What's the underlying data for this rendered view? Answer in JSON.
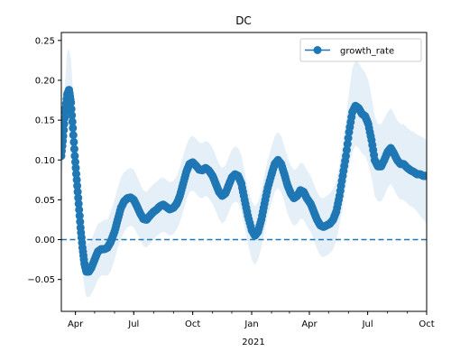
{
  "chart_data": {
    "type": "line",
    "title": "DC",
    "xlabel": "",
    "ylabel": "",
    "x_start": "2020-03-10",
    "x_end": "2021-10-01",
    "ylim": [
      -0.09,
      0.26
    ],
    "yticks": [
      -0.05,
      0.0,
      0.05,
      0.1,
      0.15,
      0.2,
      0.25
    ],
    "ytick_labels": [
      "−0.05",
      "0.00",
      "0.05",
      "0.10",
      "0.15",
      "0.20",
      "0.25"
    ],
    "xticks": [
      {
        "date": "2020-04-01",
        "label": "Apr"
      },
      {
        "date": "2020-07-01",
        "label": "Jul"
      },
      {
        "date": "2020-10-01",
        "label": "Oct"
      },
      {
        "date": "2021-01-01",
        "label": "Jan"
      },
      {
        "date": "2021-04-01",
        "label": "Apr"
      },
      {
        "date": "2021-07-01",
        "label": "Jul"
      },
      {
        "date": "2021-10-01",
        "label": "Oct"
      }
    ],
    "x_year_label": "2021",
    "reference_line": {
      "y": 0.0,
      "style": "dashed"
    },
    "legend": {
      "location": "upper right",
      "entries": [
        "growth_rate"
      ]
    },
    "grid": false,
    "series": [
      {
        "name": "growth_rate",
        "color": "#1f77b4",
        "band_color": "#c6dcf0",
        "points": [
          {
            "x": "2020-03-10",
            "y": 0.105,
            "lo": 0.08,
            "hi": 0.13
          },
          {
            "x": "2020-03-13",
            "y": 0.13,
            "lo": 0.1,
            "hi": 0.16
          },
          {
            "x": "2020-03-16",
            "y": 0.16,
            "lo": 0.13,
            "hi": 0.2
          },
          {
            "x": "2020-03-19",
            "y": 0.182,
            "lo": 0.15,
            "hi": 0.235
          },
          {
            "x": "2020-03-22",
            "y": 0.188,
            "lo": 0.155,
            "hi": 0.24
          },
          {
            "x": "2020-03-25",
            "y": 0.172,
            "lo": 0.14,
            "hi": 0.225
          },
          {
            "x": "2020-03-28",
            "y": 0.14,
            "lo": 0.11,
            "hi": 0.19
          },
          {
            "x": "2020-03-31",
            "y": 0.105,
            "lo": 0.075,
            "hi": 0.15
          },
          {
            "x": "2020-04-03",
            "y": 0.075,
            "lo": 0.045,
            "hi": 0.115
          },
          {
            "x": "2020-04-06",
            "y": 0.045,
            "lo": 0.015,
            "hi": 0.08
          },
          {
            "x": "2020-04-09",
            "y": 0.015,
            "lo": -0.015,
            "hi": 0.05
          },
          {
            "x": "2020-04-12",
            "y": -0.01,
            "lo": -0.04,
            "hi": 0.025
          },
          {
            "x": "2020-04-15",
            "y": -0.03,
            "lo": -0.06,
            "hi": 0.005
          },
          {
            "x": "2020-04-18",
            "y": -0.04,
            "lo": -0.072,
            "hi": -0.005
          },
          {
            "x": "2020-04-22",
            "y": -0.04,
            "lo": -0.072,
            "hi": -0.005
          },
          {
            "x": "2020-04-26",
            "y": -0.035,
            "lo": -0.068,
            "hi": 0.0
          },
          {
            "x": "2020-05-01",
            "y": -0.025,
            "lo": -0.06,
            "hi": 0.01
          },
          {
            "x": "2020-05-06",
            "y": -0.015,
            "lo": -0.05,
            "hi": 0.02
          },
          {
            "x": "2020-05-11",
            "y": -0.012,
            "lo": -0.045,
            "hi": 0.022
          },
          {
            "x": "2020-05-16",
            "y": -0.012,
            "lo": -0.045,
            "hi": 0.025
          },
          {
            "x": "2020-05-21",
            "y": -0.01,
            "lo": -0.045,
            "hi": 0.025
          },
          {
            "x": "2020-05-26",
            "y": -0.003,
            "lo": -0.04,
            "hi": 0.035
          },
          {
            "x": "2020-06-01",
            "y": 0.01,
            "lo": -0.025,
            "hi": 0.05
          },
          {
            "x": "2020-06-06",
            "y": 0.025,
            "lo": -0.01,
            "hi": 0.065
          },
          {
            "x": "2020-06-11",
            "y": 0.04,
            "lo": 0.0,
            "hi": 0.078
          },
          {
            "x": "2020-06-16",
            "y": 0.048,
            "lo": 0.01,
            "hi": 0.085
          },
          {
            "x": "2020-06-21",
            "y": 0.052,
            "lo": 0.015,
            "hi": 0.088
          },
          {
            "x": "2020-06-26",
            "y": 0.053,
            "lo": 0.018,
            "hi": 0.09
          },
          {
            "x": "2020-07-01",
            "y": 0.05,
            "lo": 0.015,
            "hi": 0.088
          },
          {
            "x": "2020-07-06",
            "y": 0.042,
            "lo": 0.008,
            "hi": 0.08
          },
          {
            "x": "2020-07-11",
            "y": 0.033,
            "lo": 0.0,
            "hi": 0.07
          },
          {
            "x": "2020-07-16",
            "y": 0.026,
            "lo": -0.008,
            "hi": 0.062
          },
          {
            "x": "2020-07-21",
            "y": 0.025,
            "lo": -0.01,
            "hi": 0.06
          },
          {
            "x": "2020-07-26",
            "y": 0.03,
            "lo": -0.005,
            "hi": 0.065
          },
          {
            "x": "2020-08-01",
            "y": 0.035,
            "lo": 0.0,
            "hi": 0.07
          },
          {
            "x": "2020-08-06",
            "y": 0.038,
            "lo": 0.005,
            "hi": 0.073
          },
          {
            "x": "2020-08-11",
            "y": 0.042,
            "lo": 0.008,
            "hi": 0.077
          },
          {
            "x": "2020-08-16",
            "y": 0.044,
            "lo": 0.01,
            "hi": 0.078
          },
          {
            "x": "2020-08-21",
            "y": 0.041,
            "lo": 0.008,
            "hi": 0.075
          },
          {
            "x": "2020-08-26",
            "y": 0.038,
            "lo": 0.005,
            "hi": 0.072
          },
          {
            "x": "2020-09-01",
            "y": 0.04,
            "lo": 0.007,
            "hi": 0.074
          },
          {
            "x": "2020-09-06",
            "y": 0.045,
            "lo": 0.012,
            "hi": 0.08
          },
          {
            "x": "2020-09-11",
            "y": 0.055,
            "lo": 0.022,
            "hi": 0.09
          },
          {
            "x": "2020-09-16",
            "y": 0.07,
            "lo": 0.035,
            "hi": 0.105
          },
          {
            "x": "2020-09-21",
            "y": 0.085,
            "lo": 0.05,
            "hi": 0.118
          },
          {
            "x": "2020-09-26",
            "y": 0.095,
            "lo": 0.06,
            "hi": 0.128
          },
          {
            "x": "2020-10-01",
            "y": 0.097,
            "lo": 0.062,
            "hi": 0.13
          },
          {
            "x": "2020-10-06",
            "y": 0.093,
            "lo": 0.058,
            "hi": 0.127
          },
          {
            "x": "2020-10-11",
            "y": 0.088,
            "lo": 0.053,
            "hi": 0.122
          },
          {
            "x": "2020-10-16",
            "y": 0.087,
            "lo": 0.052,
            "hi": 0.121
          },
          {
            "x": "2020-10-21",
            "y": 0.09,
            "lo": 0.055,
            "hi": 0.124
          },
          {
            "x": "2020-10-26",
            "y": 0.087,
            "lo": 0.052,
            "hi": 0.122
          },
          {
            "x": "2020-11-01",
            "y": 0.08,
            "lo": 0.045,
            "hi": 0.115
          },
          {
            "x": "2020-11-06",
            "y": 0.07,
            "lo": 0.036,
            "hi": 0.105
          },
          {
            "x": "2020-11-11",
            "y": 0.06,
            "lo": 0.026,
            "hi": 0.095
          },
          {
            "x": "2020-11-16",
            "y": 0.055,
            "lo": 0.02,
            "hi": 0.09
          },
          {
            "x": "2020-11-21",
            "y": 0.058,
            "lo": 0.024,
            "hi": 0.093
          },
          {
            "x": "2020-11-26",
            "y": 0.068,
            "lo": 0.034,
            "hi": 0.103
          },
          {
            "x": "2020-12-01",
            "y": 0.078,
            "lo": 0.044,
            "hi": 0.113
          },
          {
            "x": "2020-12-06",
            "y": 0.082,
            "lo": 0.048,
            "hi": 0.117
          },
          {
            "x": "2020-12-11",
            "y": 0.08,
            "lo": 0.046,
            "hi": 0.115
          },
          {
            "x": "2020-12-16",
            "y": 0.07,
            "lo": 0.035,
            "hi": 0.105
          },
          {
            "x": "2020-12-21",
            "y": 0.05,
            "lo": 0.015,
            "hi": 0.085
          },
          {
            "x": "2020-12-26",
            "y": 0.03,
            "lo": -0.005,
            "hi": 0.065
          },
          {
            "x": "2021-01-01",
            "y": 0.012,
            "lo": -0.025,
            "hi": 0.048
          },
          {
            "x": "2021-01-06",
            "y": 0.005,
            "lo": -0.032,
            "hi": 0.042
          },
          {
            "x": "2021-01-11",
            "y": 0.01,
            "lo": -0.025,
            "hi": 0.047
          },
          {
            "x": "2021-01-16",
            "y": 0.025,
            "lo": -0.01,
            "hi": 0.062
          },
          {
            "x": "2021-01-21",
            "y": 0.045,
            "lo": 0.01,
            "hi": 0.082
          },
          {
            "x": "2021-01-26",
            "y": 0.065,
            "lo": 0.03,
            "hi": 0.1
          },
          {
            "x": "2021-02-01",
            "y": 0.082,
            "lo": 0.047,
            "hi": 0.117
          },
          {
            "x": "2021-02-06",
            "y": 0.095,
            "lo": 0.06,
            "hi": 0.13
          },
          {
            "x": "2021-02-11",
            "y": 0.1,
            "lo": 0.065,
            "hi": 0.135
          },
          {
            "x": "2021-02-16",
            "y": 0.095,
            "lo": 0.06,
            "hi": 0.13
          },
          {
            "x": "2021-02-21",
            "y": 0.082,
            "lo": 0.047,
            "hi": 0.117
          },
          {
            "x": "2021-02-26",
            "y": 0.068,
            "lo": 0.033,
            "hi": 0.103
          },
          {
            "x": "2021-03-03",
            "y": 0.058,
            "lo": 0.023,
            "hi": 0.093
          },
          {
            "x": "2021-03-08",
            "y": 0.052,
            "lo": 0.017,
            "hi": 0.087
          },
          {
            "x": "2021-03-13",
            "y": 0.055,
            "lo": 0.02,
            "hi": 0.09
          },
          {
            "x": "2021-03-18",
            "y": 0.062,
            "lo": 0.027,
            "hi": 0.097
          },
          {
            "x": "2021-03-23",
            "y": 0.06,
            "lo": 0.025,
            "hi": 0.095
          },
          {
            "x": "2021-03-28",
            "y": 0.052,
            "lo": 0.017,
            "hi": 0.087
          },
          {
            "x": "2021-04-03",
            "y": 0.045,
            "lo": 0.01,
            "hi": 0.08
          },
          {
            "x": "2021-04-08",
            "y": 0.035,
            "lo": 0.0,
            "hi": 0.07
          },
          {
            "x": "2021-04-13",
            "y": 0.025,
            "lo": -0.012,
            "hi": 0.06
          },
          {
            "x": "2021-04-18",
            "y": 0.018,
            "lo": -0.02,
            "hi": 0.053
          },
          {
            "x": "2021-04-23",
            "y": 0.016,
            "lo": -0.022,
            "hi": 0.052
          },
          {
            "x": "2021-04-28",
            "y": 0.018,
            "lo": -0.02,
            "hi": 0.055
          },
          {
            "x": "2021-05-03",
            "y": 0.02,
            "lo": -0.017,
            "hi": 0.058
          },
          {
            "x": "2021-05-08",
            "y": 0.025,
            "lo": -0.012,
            "hi": 0.063
          },
          {
            "x": "2021-05-13",
            "y": 0.035,
            "lo": -0.002,
            "hi": 0.073
          },
          {
            "x": "2021-05-18",
            "y": 0.055,
            "lo": 0.018,
            "hi": 0.095
          },
          {
            "x": "2021-05-23",
            "y": 0.08,
            "lo": 0.04,
            "hi": 0.12
          },
          {
            "x": "2021-05-28",
            "y": 0.105,
            "lo": 0.065,
            "hi": 0.15
          },
          {
            "x": "2021-06-02",
            "y": 0.135,
            "lo": 0.09,
            "hi": 0.185
          },
          {
            "x": "2021-06-07",
            "y": 0.16,
            "lo": 0.11,
            "hi": 0.215
          },
          {
            "x": "2021-06-12",
            "y": 0.168,
            "lo": 0.118,
            "hi": 0.225
          },
          {
            "x": "2021-06-17",
            "y": 0.165,
            "lo": 0.115,
            "hi": 0.222
          },
          {
            "x": "2021-06-22",
            "y": 0.158,
            "lo": 0.108,
            "hi": 0.215
          },
          {
            "x": "2021-06-27",
            "y": 0.155,
            "lo": 0.105,
            "hi": 0.21
          },
          {
            "x": "2021-07-02",
            "y": 0.145,
            "lo": 0.095,
            "hi": 0.2
          },
          {
            "x": "2021-07-07",
            "y": 0.125,
            "lo": 0.078,
            "hi": 0.18
          },
          {
            "x": "2021-07-12",
            "y": 0.1,
            "lo": 0.055,
            "hi": 0.155
          },
          {
            "x": "2021-07-17",
            "y": 0.092,
            "lo": 0.048,
            "hi": 0.145
          },
          {
            "x": "2021-07-22",
            "y": 0.092,
            "lo": 0.048,
            "hi": 0.145
          },
          {
            "x": "2021-07-27",
            "y": 0.1,
            "lo": 0.055,
            "hi": 0.152
          },
          {
            "x": "2021-08-01",
            "y": 0.11,
            "lo": 0.065,
            "hi": 0.16
          },
          {
            "x": "2021-08-06",
            "y": 0.115,
            "lo": 0.07,
            "hi": 0.165
          },
          {
            "x": "2021-08-11",
            "y": 0.108,
            "lo": 0.063,
            "hi": 0.158
          },
          {
            "x": "2021-08-16",
            "y": 0.1,
            "lo": 0.055,
            "hi": 0.15
          },
          {
            "x": "2021-08-21",
            "y": 0.095,
            "lo": 0.05,
            "hi": 0.145
          },
          {
            "x": "2021-08-26",
            "y": 0.095,
            "lo": 0.05,
            "hi": 0.145
          },
          {
            "x": "2021-09-01",
            "y": 0.09,
            "lo": 0.045,
            "hi": 0.14
          },
          {
            "x": "2021-09-06",
            "y": 0.087,
            "lo": 0.042,
            "hi": 0.137
          },
          {
            "x": "2021-09-11",
            "y": 0.085,
            "lo": 0.04,
            "hi": 0.135
          },
          {
            "x": "2021-09-16",
            "y": 0.082,
            "lo": 0.035,
            "hi": 0.132
          },
          {
            "x": "2021-09-21",
            "y": 0.082,
            "lo": 0.03,
            "hi": 0.13
          },
          {
            "x": "2021-09-26",
            "y": 0.08,
            "lo": 0.025,
            "hi": 0.128
          },
          {
            "x": "2021-10-01",
            "y": 0.08,
            "lo": 0.02,
            "hi": 0.125
          }
        ]
      }
    ]
  }
}
